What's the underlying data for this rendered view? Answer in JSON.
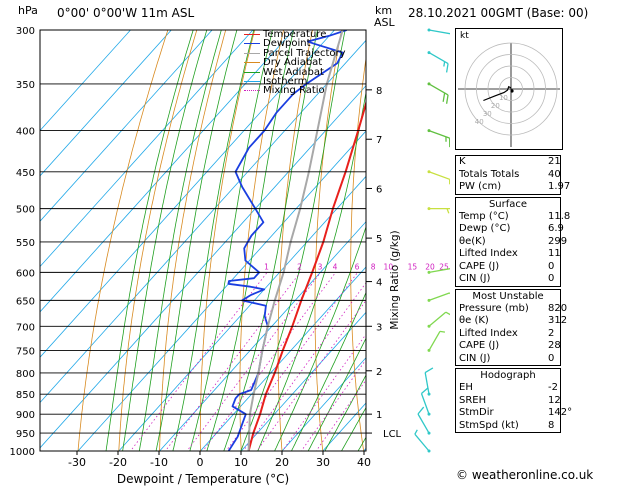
{
  "header": {
    "location": "0°00'  0°00'W  11m  ASL",
    "datetime": "28.10.2021  00GMT  (Base: 00)",
    "hpa_label": "hPa",
    "km_label": "km",
    "asl_label": "ASL"
  },
  "colors": {
    "temperature": "#e8201c",
    "dewpoint": "#1a3ee0",
    "parcel": "#a8a8a8",
    "dry_adiabat": "#d88a20",
    "wet_adiabat": "#20a020",
    "isotherm": "#20a8e8",
    "mixing_ratio": "#d020c0"
  },
  "legend": [
    {
      "label": "Temperature",
      "color": "#e8201c",
      "style": "solid"
    },
    {
      "label": "Dewpoint",
      "color": "#1a3ee0",
      "style": "solid"
    },
    {
      "label": "Parcel Trajectory",
      "color": "#a8a8a8",
      "style": "solid"
    },
    {
      "label": "Dry Adiabat",
      "color": "#d88a20",
      "style": "solid"
    },
    {
      "label": "Wet Adiabat",
      "color": "#20a020",
      "style": "solid"
    },
    {
      "label": "Isotherm",
      "color": "#20a8e8",
      "style": "solid"
    },
    {
      "label": "Mixing Ratio",
      "color": "#d020c0",
      "style": "dotted"
    }
  ],
  "chart_data": {
    "type": "line",
    "xlabel": "Dewpoint / Temperature (°C)",
    "ylabel_right": "Mixing Ratio (g/kg)",
    "xlim": [
      -35,
      40
    ],
    "ylim": [
      1000,
      300
    ],
    "log_y": true,
    "grid": true,
    "pressure_ticks": [
      300,
      350,
      400,
      450,
      500,
      550,
      600,
      650,
      700,
      750,
      800,
      850,
      900,
      950,
      1000
    ],
    "temp_ticks": [
      -30,
      -20,
      -10,
      0,
      10,
      20,
      30,
      40
    ],
    "km_ticks": [
      {
        "label": "8",
        "p": 356
      },
      {
        "label": "7",
        "p": 410
      },
      {
        "label": "6",
        "p": 472
      },
      {
        "label": "5",
        "p": 544
      },
      {
        "label": "4",
        "p": 616
      },
      {
        "label": "3",
        "p": 700
      },
      {
        "label": "2",
        "p": 795
      },
      {
        "label": "1",
        "p": 900
      },
      {
        "label": "LCL",
        "p": 950
      }
    ],
    "mixing_ratio_labels": [
      {
        "label": "1",
        "w": 1
      },
      {
        "label": "2",
        "w": 2
      },
      {
        "label": "3",
        "w": 3
      },
      {
        "label": "4",
        "w": 4
      },
      {
        "label": "6",
        "w": 6
      },
      {
        "label": "8",
        "w": 8
      },
      {
        "label": "10",
        "w": 10
      },
      {
        "label": "15",
        "w": 15
      },
      {
        "label": "20",
        "w": 20
      },
      {
        "label": "25",
        "w": 25
      }
    ],
    "series": [
      {
        "name": "Temperature",
        "points": [
          [
            1000,
            11.8
          ],
          [
            950,
            9.0
          ],
          [
            900,
            6.5
          ],
          [
            850,
            3.5
          ],
          [
            800,
            1.0
          ],
          [
            750,
            -2.0
          ],
          [
            700,
            -5.0
          ],
          [
            650,
            -8.5
          ],
          [
            600,
            -12.0
          ],
          [
            550,
            -16.0
          ],
          [
            500,
            -21.0
          ],
          [
            450,
            -26.0
          ],
          [
            400,
            -32.0
          ],
          [
            350,
            -39.0
          ],
          [
            320,
            -44.0
          ],
          [
            300,
            -47.0
          ]
        ]
      },
      {
        "name": "Dewpoint",
        "points": [
          [
            1000,
            6.9
          ],
          [
            960,
            6.0
          ],
          [
            920,
            4.0
          ],
          [
            900,
            3.0
          ],
          [
            880,
            -2.0
          ],
          [
            860,
            -3.0
          ],
          [
            850,
            -3.0
          ],
          [
            840,
            -1.0
          ],
          [
            800,
            -3.0
          ],
          [
            750,
            -7.0
          ],
          [
            700,
            -11.0
          ],
          [
            680,
            -14.0
          ],
          [
            660,
            -16.0
          ],
          [
            650,
            -23.0
          ],
          [
            640,
            -22.0
          ],
          [
            630,
            -20.0
          ],
          [
            625,
            -24.0
          ],
          [
            620,
            -30.0
          ],
          [
            615,
            -30.5
          ],
          [
            610,
            -25.0
          ],
          [
            600,
            -25.0
          ],
          [
            580,
            -31.0
          ],
          [
            560,
            -34.0
          ],
          [
            540,
            -35.0
          ],
          [
            520,
            -35.0
          ],
          [
            500,
            -40.0
          ],
          [
            470,
            -48.0
          ],
          [
            450,
            -53.0
          ],
          [
            420,
            -55.0
          ],
          [
            400,
            -55.0
          ],
          [
            380,
            -56.0
          ],
          [
            360,
            -56.0
          ],
          [
            350,
            -55.0
          ],
          [
            330,
            -52.0
          ],
          [
            320,
            -53.0
          ],
          [
            312,
            -62.0
          ],
          [
            310,
            -64.0
          ],
          [
            305,
            -60.0
          ],
          [
            300,
            -57.0
          ]
        ]
      },
      {
        "name": "Parcel Trajectory",
        "points": [
          [
            1000,
            11.8
          ],
          [
            950,
            8.0
          ],
          [
            900,
            4.0
          ],
          [
            850,
            0.5
          ],
          [
            800,
            -3.0
          ],
          [
            750,
            -7.0
          ],
          [
            700,
            -11.0
          ],
          [
            650,
            -15.0
          ],
          [
            600,
            -19.0
          ],
          [
            550,
            -24.0
          ],
          [
            500,
            -29.0
          ],
          [
            450,
            -35.0
          ],
          [
            400,
            -42.0
          ],
          [
            350,
            -50.0
          ],
          [
            300,
            -58.0
          ]
        ]
      }
    ],
    "wind_profile": [
      {
        "p": 1000,
        "dir": 140,
        "spd": 5,
        "color": "#30c8c8"
      },
      {
        "p": 950,
        "dir": 150,
        "spd": 10,
        "color": "#30c8c8"
      },
      {
        "p": 900,
        "dir": 160,
        "spd": 12,
        "color": "#30c8c8"
      },
      {
        "p": 850,
        "dir": 170,
        "spd": 12,
        "color": "#30c8c8"
      },
      {
        "p": 750,
        "dir": 210,
        "spd": 5,
        "color": "#80d850"
      },
      {
        "p": 700,
        "dir": 230,
        "spd": 10,
        "color": "#80d850"
      },
      {
        "p": 650,
        "dir": 250,
        "spd": 10,
        "color": "#80d850"
      },
      {
        "p": 600,
        "dir": 260,
        "spd": 10,
        "color": "#80d850"
      },
      {
        "p": 500,
        "dir": 270,
        "spd": 15,
        "color": "#c8e040"
      },
      {
        "p": 450,
        "dir": 290,
        "spd": 5,
        "color": "#c8e040"
      },
      {
        "p": 400,
        "dir": 290,
        "spd": 15,
        "color": "#60c040"
      },
      {
        "p": 350,
        "dir": 300,
        "spd": 20,
        "color": "#60c040"
      },
      {
        "p": 320,
        "dir": 300,
        "spd": 15,
        "color": "#30c8c8"
      },
      {
        "p": 300,
        "dir": 280,
        "spd": 10,
        "color": "#30c8c8"
      }
    ]
  },
  "hodograph": {
    "unit_label": "kt",
    "ring_labels": [
      "10",
      "20",
      "30",
      "40"
    ],
    "points": [
      [
        0,
        -1
      ],
      [
        -2,
        -2
      ],
      [
        -3,
        1
      ],
      [
        -6,
        3
      ],
      [
        -14,
        6
      ],
      [
        -24,
        10
      ]
    ]
  },
  "indices": [
    {
      "label": "K",
      "value": "21"
    },
    {
      "label": "Totals Totals",
      "value": "40"
    },
    {
      "label": "PW (cm)",
      "value": "1.97"
    }
  ],
  "surface": {
    "title": "Surface",
    "rows": [
      {
        "label": "Temp (°C)",
        "value": "11.8"
      },
      {
        "label": "Dewp (°C)",
        "value": "6.9"
      },
      {
        "label": "θe(K)",
        "value": "299"
      },
      {
        "label": "Lifted Index",
        "value": "11"
      },
      {
        "label": "CAPE (J)",
        "value": "0"
      },
      {
        "label": "CIN (J)",
        "value": "0"
      }
    ]
  },
  "most_unstable": {
    "title": "Most Unstable",
    "rows": [
      {
        "label": "Pressure (mb)",
        "value": "820"
      },
      {
        "label": "θe (K)",
        "value": "312"
      },
      {
        "label": "Lifted Index",
        "value": "2"
      },
      {
        "label": "CAPE (J)",
        "value": "28"
      },
      {
        "label": "CIN (J)",
        "value": "0"
      }
    ]
  },
  "hodograph_table": {
    "title": "Hodograph",
    "rows": [
      {
        "label": "EH",
        "value": "-2"
      },
      {
        "label": "SREH",
        "value": "12"
      },
      {
        "label": "StmDir",
        "value": "142°"
      },
      {
        "label": "StmSpd (kt)",
        "value": "8"
      }
    ]
  },
  "footer": {
    "copyright": "© weatheronline.co.uk"
  }
}
